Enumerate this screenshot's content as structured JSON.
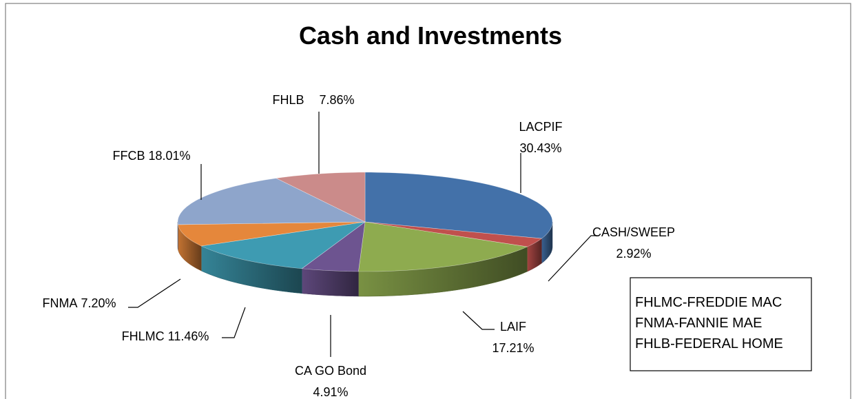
{
  "chart_data": {
    "type": "pie3d",
    "title": "Cash and Investments",
    "categories": [
      "LACPIF",
      "CASH/SWEEP",
      "LAIF",
      "CA GO Bond",
      "FHLMC",
      "FNMA",
      "FFCB",
      "FHLB"
    ],
    "values": [
      30.43,
      2.92,
      17.21,
      4.91,
      11.46,
      7.2,
      18.01,
      7.86
    ],
    "value_labels": [
      "30.43%",
      "2.92%",
      "17.21%",
      "4.91%",
      "11.46%",
      "7.20%",
      "18.01%",
      "7.86%"
    ],
    "colors": [
      "#4371a9",
      "#c0504d",
      "#8eab4f",
      "#6d5490",
      "#3e9bb2",
      "#e5873b",
      "#8ea5cb",
      "#cb8b8a"
    ],
    "annotations": [
      "FHLMC-FREDDIE MAC",
      "FNMA-FANNIE MAE",
      "FHLB-FEDERAL HOME"
    ]
  }
}
